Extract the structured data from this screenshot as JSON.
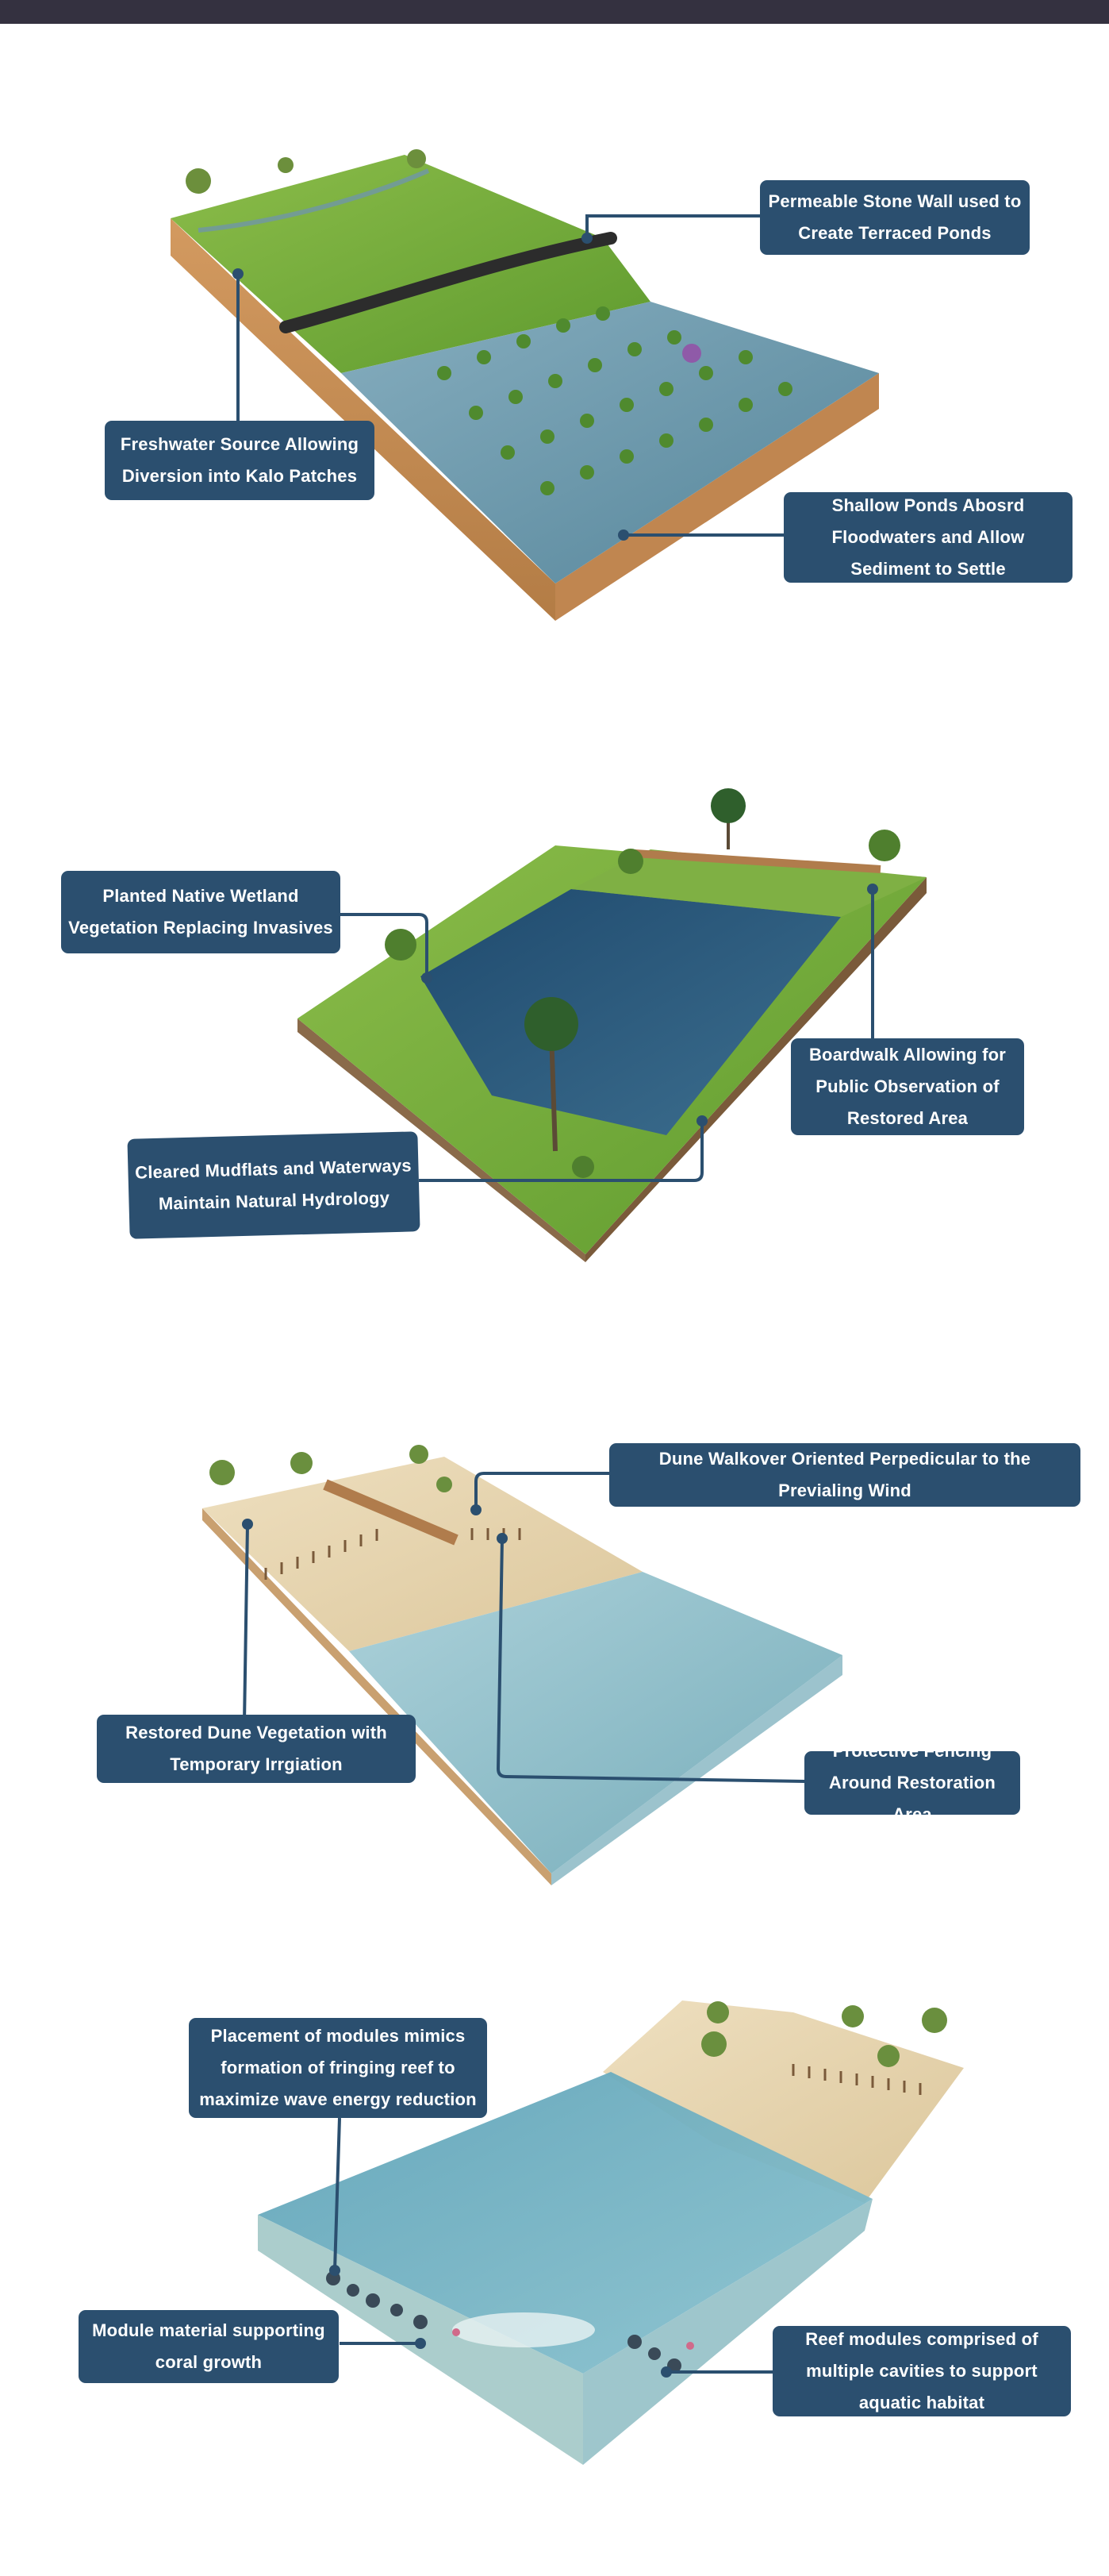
{
  "colors": {
    "top_bar": "#343140",
    "callout_bg": "#2b4f6f",
    "callout_text": "#ffffff",
    "leader_line": "#2b4f6f",
    "grass": "#6da63a",
    "soil": "#c9925a",
    "water": "#5d8fa6",
    "sand": "#e6d3ad"
  },
  "panels": [
    {
      "scene_name": "kalo-terraces-diagram",
      "callouts": [
        {
          "label": "Permeable Stone Wall used to Create Terraced Ponds"
        },
        {
          "label": "Freshwater Source Allowing Diversion into Kalo Patches"
        },
        {
          "label": "Shallow Ponds Abosrd Floodwaters and Allow Sediment to Settle"
        }
      ]
    },
    {
      "scene_name": "wetland-restoration-diagram",
      "callouts": [
        {
          "label": "Planted Native Wetland Vegetation Replacing Invasives"
        },
        {
          "label": "Boardwalk Allowing for Public Observation of Restored Area"
        },
        {
          "label": "Cleared Mudflats and Waterways Maintain Natural Hydrology"
        }
      ]
    },
    {
      "scene_name": "dune-restoration-diagram",
      "callouts": [
        {
          "label": "Dune Walkover Oriented Perpedicular to the Previaling Wind"
        },
        {
          "label": "Restored Dune Vegetation with Temporary Irrgiation"
        },
        {
          "label": "Protective Fencing Around Restoration Area"
        }
      ]
    },
    {
      "scene_name": "reef-modules-diagram",
      "callouts": [
        {
          "label": "Placement of modules mimics formation of fringing reef to maximize wave energy reduction"
        },
        {
          "label": "Module material supporting coral growth"
        },
        {
          "label": "Reef modules comprised of multiple cavities to support aquatic habitat"
        }
      ]
    }
  ]
}
